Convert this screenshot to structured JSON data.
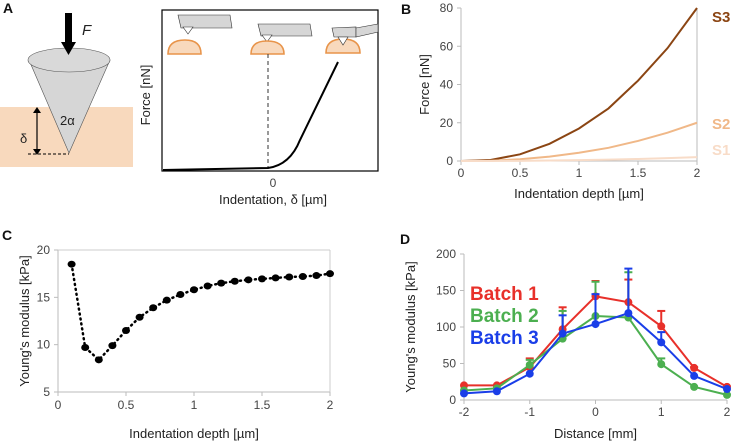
{
  "panel_a": {
    "label": "A",
    "force_symbol": "F",
    "angle_label": "2α",
    "depth_label": "δ",
    "ylabel": "Force [nN]",
    "xtick": "0",
    "xlabel": "Indentation, δ [µm]",
    "colors": {
      "sample": "#f8d9bd",
      "sample_outline": "#e8944a",
      "tip": "#d6d6d6"
    }
  },
  "chart_data": [
    {
      "panel": "B",
      "type": "line",
      "xlabel": "Indentation depth [µm]",
      "ylabel": "Force [nN]",
      "xlim": [
        0,
        2
      ],
      "ylim": [
        0,
        80
      ],
      "xticks": [
        "0",
        "0.5",
        "1",
        "1.5",
        "2"
      ],
      "yticks": [
        "0",
        "20",
        "40",
        "60",
        "80"
      ],
      "grid": false,
      "legend": "right, end-of-line labels",
      "x": [
        0,
        0.25,
        0.5,
        0.75,
        1,
        1.25,
        1.5,
        1.75,
        2
      ],
      "series": [
        {
          "name": "S3",
          "color": "#8b4513",
          "values": [
            0,
            0.5,
            3.5,
            9,
            17,
            27.5,
            42,
            59,
            80
          ]
        },
        {
          "name": "S2",
          "color": "#f0b888",
          "values": [
            0,
            0.12,
            0.9,
            2.3,
            4.3,
            6.9,
            10.5,
            14.8,
            20
          ]
        },
        {
          "name": "S1",
          "color": "#f8dcc8",
          "values": [
            0,
            0.01,
            0.09,
            0.23,
            0.43,
            0.69,
            1.05,
            1.48,
            2
          ]
        }
      ]
    },
    {
      "panel": "C",
      "type": "scatter",
      "xlabel": "Indentation depth [µm]",
      "ylabel": "Young's modulus [kPa]",
      "xlim": [
        0,
        2
      ],
      "ylim": [
        5,
        20
      ],
      "xticks": [
        "0",
        "0.5",
        "1",
        "1.5",
        "2"
      ],
      "yticks": [
        "5",
        "10",
        "15",
        "20"
      ],
      "grid": false,
      "line_style": "dotted",
      "x": [
        0.1,
        0.2,
        0.3,
        0.4,
        0.5,
        0.6,
        0.7,
        0.8,
        0.9,
        1.0,
        1.1,
        1.2,
        1.3,
        1.4,
        1.5,
        1.6,
        1.7,
        1.8,
        1.9,
        2.0
      ],
      "series": [
        {
          "color": "#000000",
          "values": [
            18.5,
            9.7,
            8.4,
            9.9,
            11.5,
            12.9,
            13.9,
            14.7,
            15.3,
            15.8,
            16.2,
            16.5,
            16.7,
            16.85,
            16.95,
            17.05,
            17.15,
            17.2,
            17.3,
            17.5
          ]
        }
      ]
    },
    {
      "panel": "D",
      "type": "line",
      "xlabel": "Distance [mm]",
      "ylabel": "Young's modulus [kPa]",
      "xlim": [
        -2,
        2
      ],
      "ylim": [
        0,
        200
      ],
      "xticks": [
        "-2",
        "-1",
        "0",
        "1",
        "2"
      ],
      "yticks": [
        "0",
        "50",
        "100",
        "150",
        "200"
      ],
      "grid": false,
      "legend": "top-left",
      "x": [
        -2,
        -1.5,
        -1,
        -0.5,
        0,
        0.5,
        1,
        1.5,
        2
      ],
      "series": [
        {
          "name": "Batch 1",
          "color": "#e8302a",
          "values": [
            20,
            20,
            45,
            97,
            142,
            134,
            101,
            44,
            18
          ],
          "err": [
            0,
            0,
            12,
            30,
            21,
            31,
            21,
            1,
            0
          ]
        },
        {
          "name": "Batch 2",
          "color": "#4caf50",
          "values": [
            13,
            16,
            48,
            84,
            115,
            113,
            49,
            18,
            7
          ],
          "err": [
            0,
            0,
            7,
            38,
            47,
            62,
            8,
            0,
            0
          ]
        },
        {
          "name": "Batch 3",
          "color": "#1a3ee8",
          "values": [
            9,
            12,
            36,
            91,
            104,
            119,
            79,
            33,
            15
          ],
          "err": [
            0,
            0,
            0,
            25,
            41,
            61,
            14,
            0,
            0
          ]
        }
      ]
    }
  ]
}
